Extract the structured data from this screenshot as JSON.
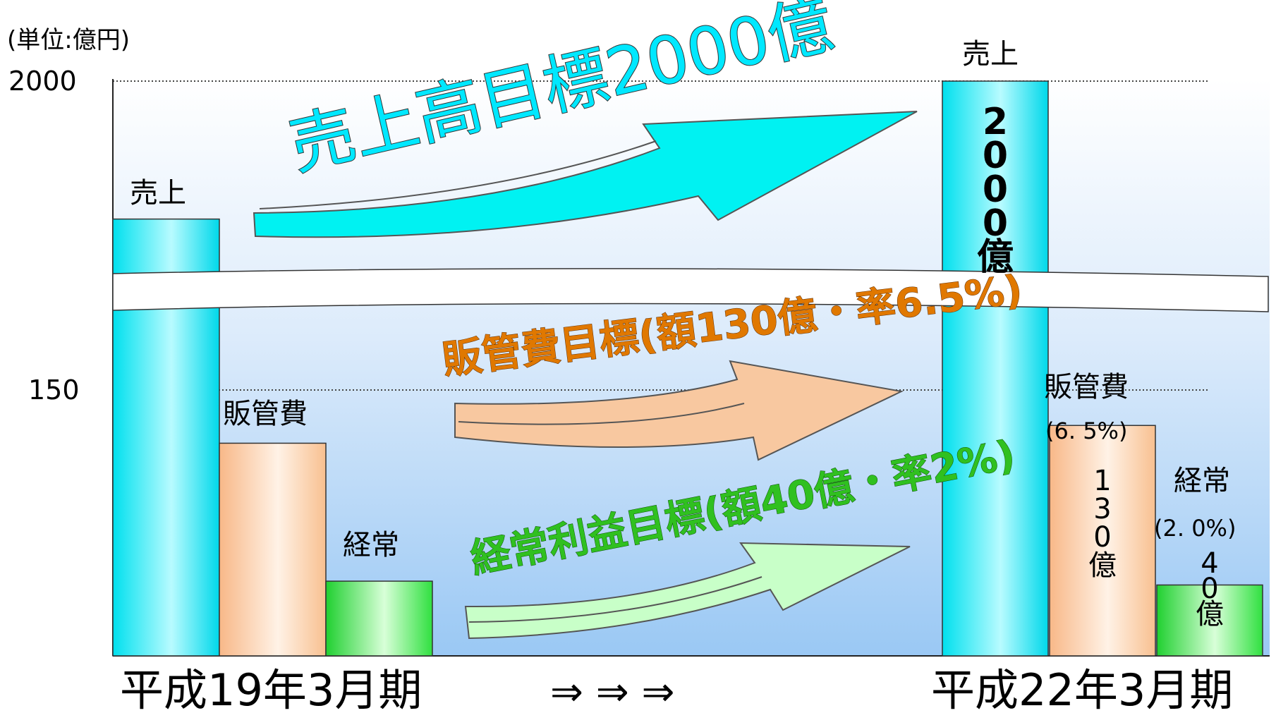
{
  "chart_data": {
    "type": "bar",
    "unit_label": "(単位:億円)",
    "y_ticks": [
      "2000",
      "150"
    ],
    "axis_break": true,
    "groups": [
      {
        "x_label": "平成19年3月期",
        "bars": [
          {
            "label": "売上",
            "series": "sales",
            "level": 0.76
          },
          {
            "label": "販管費",
            "series": "sga",
            "level": 0.37
          },
          {
            "label": "経常",
            "series": "ordinary",
            "level": 0.13
          }
        ]
      },
      {
        "x_label": "平成22年3月期",
        "bars": [
          {
            "label": "売上",
            "series": "sales",
            "value": 2000,
            "value_text": "2000億"
          },
          {
            "label": "販管費",
            "series": "sga",
            "value": 130,
            "value_text": "130億",
            "rate": "(6. 5%)"
          },
          {
            "label": "経常",
            "series": "ordinary",
            "value": 40,
            "value_text": "40億",
            "rate": "(2. 0%)"
          }
        ]
      }
    ],
    "transition_arrows": "⇒ ⇒ ⇒",
    "arrows": [
      {
        "series": "sales",
        "text": "売上高目標2000億"
      },
      {
        "series": "sga",
        "text": "販管費目標(額130億・率6.5%)"
      },
      {
        "series": "ordinary",
        "text": "経常利益目標(額40億・率2%)"
      }
    ],
    "colors": {
      "sales": "#00e8f0",
      "sga": "#f8c8a0",
      "ordinary": "#30e040",
      "sales_text": "#00d8e8",
      "sga_text": "#e07800",
      "ordinary_text": "#30c020",
      "plot_bg_top": "#ffffff",
      "plot_bg_bottom": "#9ac8f4"
    }
  }
}
